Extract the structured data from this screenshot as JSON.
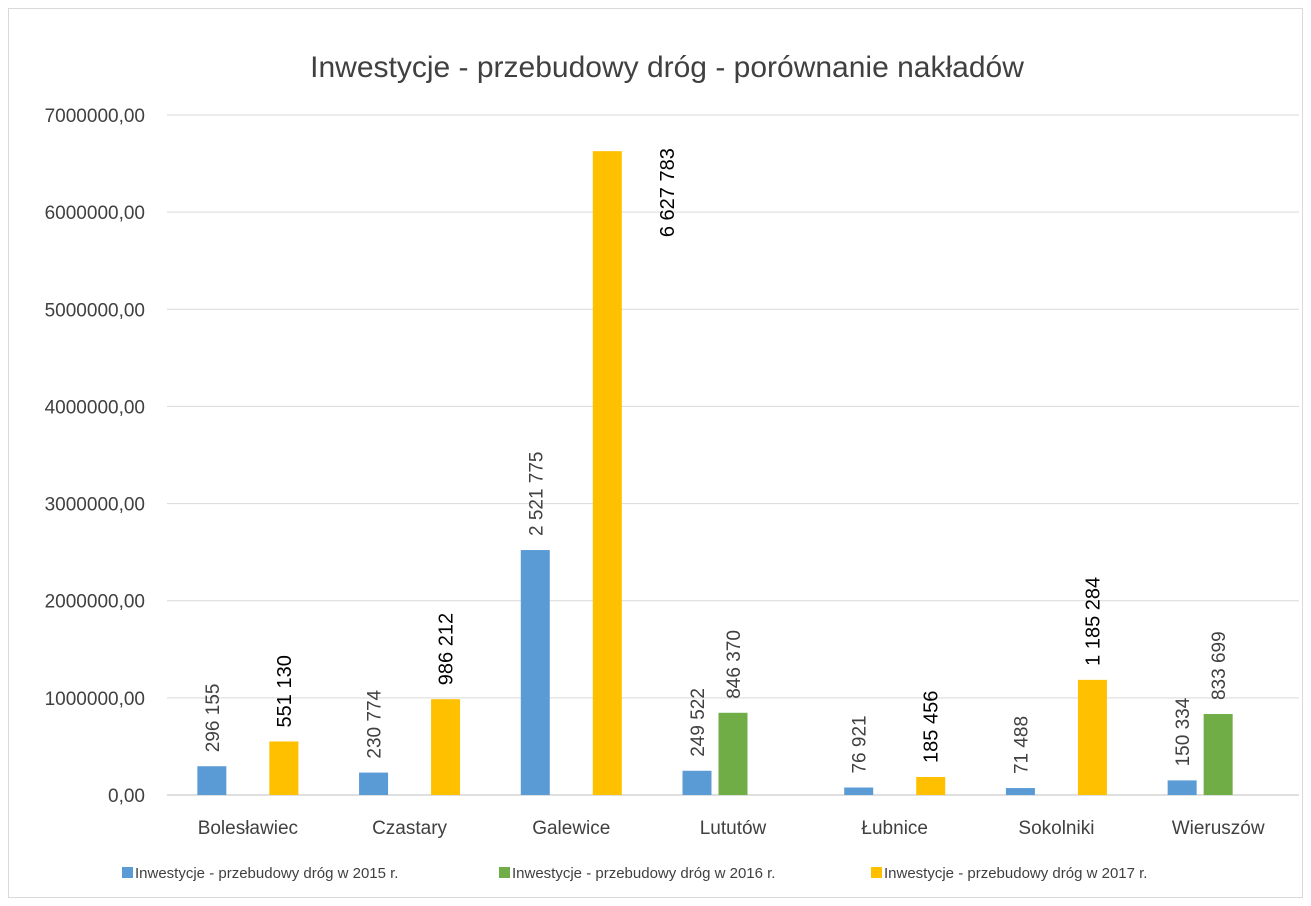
{
  "chart_data": {
    "type": "bar",
    "title": "Inwestycje - przebudowy dróg - porównanie nakładów",
    "categories": [
      "Bolesławiec",
      "Czastary",
      "Galewice",
      "Lututów",
      "Łubnice",
      "Sokolniki",
      "Wieruszów"
    ],
    "series": [
      {
        "name": "Inwestycje - przebudowy dróg w 2015 r.",
        "color": "#5b9bd5",
        "values": [
          296155,
          230774,
          2521775,
          249522,
          76921,
          71488,
          150334
        ],
        "labels": [
          "296 155",
          "230 774",
          "2 521 775",
          "249 522",
          "76 921",
          "71 488",
          "150 334"
        ]
      },
      {
        "name": "Inwestycje - przebudowy dróg w 2016 r.",
        "color": "#70ad47",
        "values": [
          null,
          null,
          null,
          846370,
          null,
          null,
          833699
        ],
        "labels": [
          null,
          null,
          null,
          "846 370",
          null,
          null,
          "833 699"
        ]
      },
      {
        "name": "Inwestycje - przebudowy dróg w 2017 r.",
        "color": "#ffc000",
        "values": [
          551130,
          986212,
          6627783,
          null,
          185456,
          1185284,
          null
        ],
        "labels": [
          "551 130",
          "986 212",
          "6 627 783",
          null,
          "185 456",
          "1 185 284",
          null
        ]
      }
    ],
    "yticks": [
      0,
      1000000,
      2000000,
      3000000,
      4000000,
      5000000,
      6000000,
      7000000
    ],
    "ytick_labels": [
      "0,00",
      "1000000,00",
      "2000000,00",
      "3000000,00",
      "4000000,00",
      "5000000,00",
      "6000000,00",
      "7000000,00"
    ],
    "ylim": [
      0,
      7000000
    ],
    "grid": true,
    "legend": "bottom"
  }
}
